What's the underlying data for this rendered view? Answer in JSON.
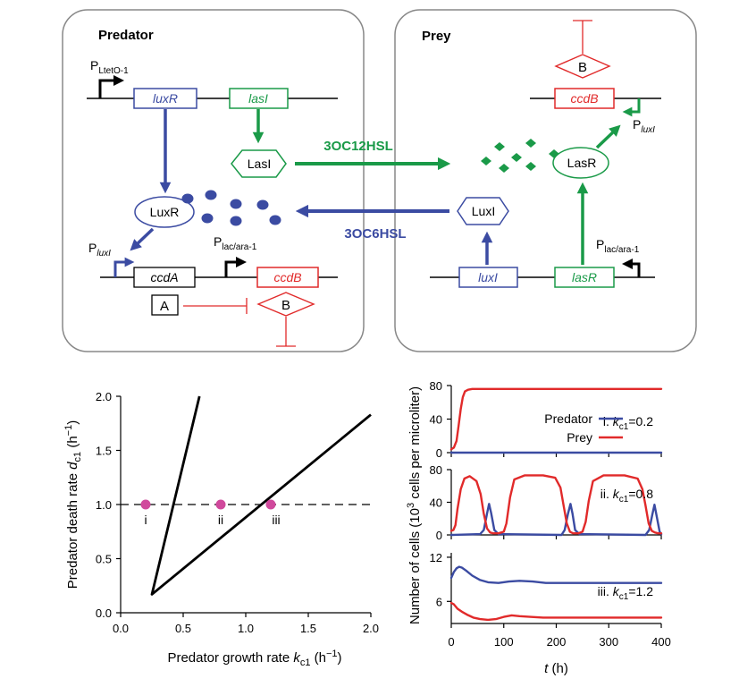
{
  "colors": {
    "blue": "#3B4BA2",
    "green": "#1A9A48",
    "red": "#E12A2A",
    "magenta": "#D0499C",
    "black": "#000000"
  },
  "circuit": {
    "predator": {
      "title": "Predator",
      "promoter_top": {
        "main": "P",
        "sub": "LtetO-1"
      },
      "gene_luxR": "luxR",
      "gene_lasI": "lasI",
      "protein_LasI": "LasI",
      "protein_LuxR": "LuxR",
      "promoter_luxI": {
        "main": "P",
        "sub": "luxI"
      },
      "promoter_lac": {
        "main": "P",
        "sub": "lac/ara-1"
      },
      "gene_ccdA": "ccdA",
      "gene_ccdB": "ccdB",
      "box_A": "A",
      "box_B": "B"
    },
    "prey": {
      "title": "Prey",
      "box_B": "B",
      "gene_ccdB": "ccdB",
      "promoter_luxI": {
        "main": "P",
        "sub": "luxI"
      },
      "protein_LasR": "LasR",
      "protein_LuxI": "LuxI",
      "promoter_lac": {
        "main": "P",
        "sub": "lac/ara-1"
      },
      "gene_luxI": "luxI",
      "gene_lasR": "lasR"
    },
    "signal_top": "3OC12HSL",
    "signal_bottom": "3OC6HSL"
  },
  "chart_data": [
    {
      "type": "line",
      "ylabel": {
        "pre": "Predator death rate ",
        "var": "d",
        "sub": "c1",
        "post": " (h",
        "sup": "−1",
        "end": ")"
      },
      "xlabel": {
        "pre": "Predator growth rate ",
        "var": "k",
        "sub": "c1",
        "post": " (h",
        "sup": "−1",
        "end": ")"
      },
      "xlim": [
        0,
        2.0
      ],
      "ylim": [
        0,
        2.0
      ],
      "xticks": [
        "0.0",
        "0.5",
        "1.0",
        "1.5",
        "2.0"
      ],
      "yticks": [
        "0.0",
        "0.5",
        "1.0",
        "1.5",
        "2.0"
      ],
      "boundary_left": {
        "x": [
          0.25,
          0.63
        ],
        "y": [
          0.17,
          2.0
        ]
      },
      "boundary_right": {
        "x": [
          0.25,
          2.0
        ],
        "y": [
          0.17,
          1.83
        ]
      },
      "dashed_line_y": 1.0,
      "points": [
        {
          "x": 0.2,
          "y": 1.0,
          "label": "i"
        },
        {
          "x": 0.8,
          "y": 1.0,
          "label": "ii"
        },
        {
          "x": 1.2,
          "y": 1.0,
          "label": "iii"
        }
      ]
    },
    {
      "type": "line",
      "ylabel": {
        "pre": "Number of cells (10",
        "sup": "3",
        "post": " cells per microliter)"
      },
      "xlabel": {
        "var": "t",
        "post": " (h)"
      },
      "xlim": [
        0,
        400
      ],
      "xticks": [
        "0",
        "100",
        "200",
        "300",
        "400"
      ],
      "legend": {
        "predator": "Predator",
        "prey": "Prey"
      },
      "panels": [
        {
          "label": {
            "pre": "i. ",
            "var": "k",
            "sub": "c1",
            "post": "=0.2"
          },
          "ylim": [
            0,
            80
          ],
          "yticks": [
            "0",
            "40",
            "80"
          ],
          "series": [
            {
              "name": "Predator",
              "color": "blue",
              "x": [
                0,
                400
              ],
              "y": [
                0,
                0
              ]
            },
            {
              "name": "Prey",
              "color": "red",
              "x": [
                0,
                5,
                10,
                14,
                18,
                22,
                26,
                32,
                40,
                60,
                400
              ],
              "y": [
                4,
                6,
                14,
                32,
                52,
                66,
                73,
                75,
                76,
                76,
                76
              ]
            }
          ]
        },
        {
          "label": {
            "pre": "ii. ",
            "var": "k",
            "sub": "c1",
            "post": "=0.8"
          },
          "ylim": [
            0,
            80
          ],
          "yticks": [
            "0",
            "40",
            "80"
          ],
          "series": [
            {
              "name": "Predator",
              "color": "blue",
              "x": [
                0,
                55,
                62,
                68,
                72,
                76,
                82,
                90,
                210,
                216,
                222,
                227,
                231,
                236,
                244,
                370,
                377,
                383,
                387,
                391,
                397,
                400
              ],
              "y": [
                0,
                1,
                6,
                26,
                38,
                27,
                6,
                1,
                0,
                6,
                25,
                38,
                26,
                6,
                1,
                0,
                6,
                25,
                37,
                24,
                4,
                1
              ]
            },
            {
              "name": "Prey",
              "color": "red",
              "x": [
                0,
                4,
                8,
                12,
                18,
                25,
                35,
                48,
                56,
                62,
                68,
                74,
                80,
                90,
                100,
                105,
                112,
                120,
                140,
                175,
                198,
                208,
                214,
                220,
                226,
                232,
                242,
                250,
                256,
                262,
                270,
                290,
                330,
                355,
                364,
                370,
                376,
                382,
                388,
                394,
                400
              ],
              "y": [
                5,
                6,
                12,
                32,
                56,
                69,
                72,
                66,
                50,
                26,
                8,
                3,
                2,
                2,
                4,
                14,
                46,
                68,
                73,
                73,
                70,
                58,
                36,
                14,
                4,
                2,
                2,
                4,
                16,
                42,
                66,
                73,
                73,
                69,
                56,
                36,
                14,
                5,
                3,
                2,
                2
              ]
            }
          ]
        },
        {
          "label": {
            "pre": "iii. ",
            "var": "k",
            "sub": "c1",
            "post": "=1.2"
          },
          "ylim": [
            3,
            12.6
          ],
          "yticks": [
            "6",
            "12"
          ],
          "series": [
            {
              "name": "Predator",
              "color": "blue",
              "x": [
                0,
                5,
                10,
                15,
                20,
                28,
                40,
                55,
                70,
                90,
                110,
                130,
                155,
                180,
                210,
                250,
                400
              ],
              "y": [
                9.2,
                10.0,
                10.5,
                10.7,
                10.6,
                10.2,
                9.5,
                8.9,
                8.6,
                8.5,
                8.7,
                8.8,
                8.7,
                8.5,
                8.5,
                8.5,
                8.5
              ]
            },
            {
              "name": "Prey",
              "color": "red",
              "x": [
                0,
                5,
                12,
                20,
                30,
                42,
                55,
                70,
                85,
                100,
                115,
                130,
                150,
                175,
                200,
                250,
                400
              ],
              "y": [
                5.8,
                5.6,
                5.0,
                4.6,
                4.2,
                3.8,
                3.6,
                3.5,
                3.6,
                3.9,
                4.1,
                4.0,
                3.9,
                3.8,
                3.8,
                3.8,
                3.8
              ]
            }
          ]
        }
      ]
    }
  ]
}
